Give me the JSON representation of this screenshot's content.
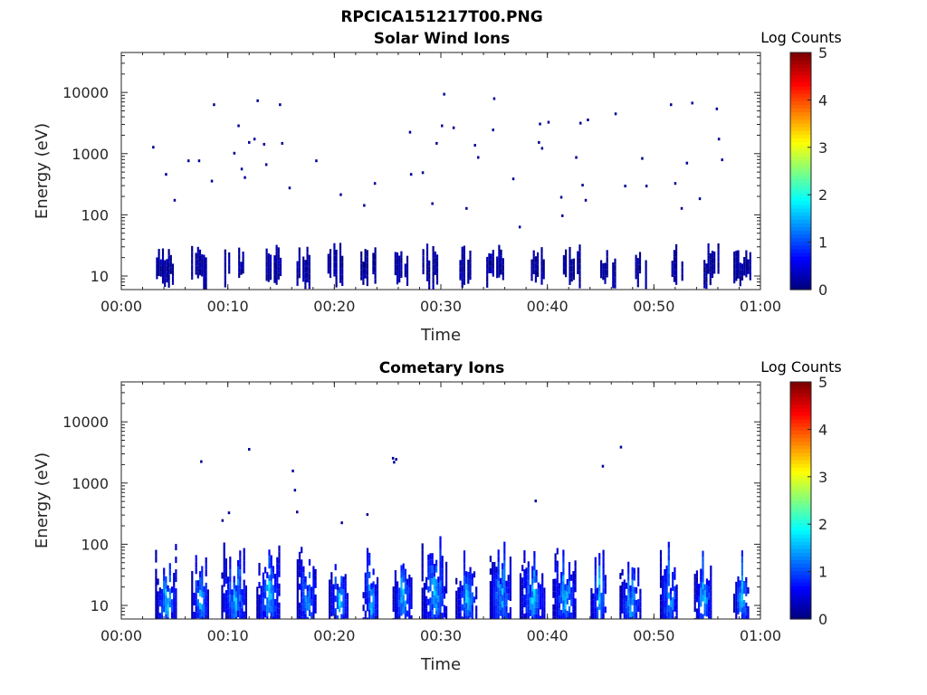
{
  "figure": {
    "title": "RPCICA151217T00.PNG"
  },
  "colors": {
    "background": "#ffffff",
    "axis": "#262626",
    "colormap": "jet"
  },
  "chart_data": [
    {
      "type": "heatmap",
      "title": "Solar Wind Ions",
      "xlabel": "Time",
      "ylabel": "Energy (eV)",
      "x_ticks": [
        "00:00",
        "00:10",
        "00:20",
        "00:30",
        "00:40",
        "00:50",
        "01:00"
      ],
      "x_range_minutes": [
        0,
        60
      ],
      "y_scale": "log",
      "y_ticks": [
        "10",
        "100",
        "1000",
        "10000"
      ],
      "y_range": [
        6,
        45000
      ],
      "colorbar": {
        "label": "Log Counts",
        "range": [
          0,
          5
        ],
        "ticks": [
          "0",
          "1",
          "2",
          "3",
          "4",
          "5"
        ]
      },
      "bursts_minutes": [
        4.1,
        7.3,
        10.6,
        14.3,
        17.1,
        20.1,
        23.1,
        26.2,
        29.1,
        32.2,
        35.1,
        39.1,
        42.3,
        45.8,
        48.7,
        52.2,
        55.4,
        58.3
      ],
      "low_energy_band_eV": [
        6,
        35
      ],
      "burst_max_log_counts": 0.3,
      "scattered_points": [
        {
          "t": 2.9,
          "e": 1250,
          "c": 0.1
        },
        {
          "t": 4.1,
          "e": 450,
          "c": 0.1
        },
        {
          "t": 4.9,
          "e": 170,
          "c": 0.1
        },
        {
          "t": 6.2,
          "e": 750,
          "c": 0.1
        },
        {
          "t": 7.2,
          "e": 750,
          "c": 0.1
        },
        {
          "t": 8.6,
          "e": 6200,
          "c": 0.1
        },
        {
          "t": 8.4,
          "e": 350,
          "c": 0.1
        },
        {
          "t": 10.5,
          "e": 1000,
          "c": 0.1
        },
        {
          "t": 10.9,
          "e": 2800,
          "c": 0.1
        },
        {
          "t": 11.2,
          "e": 550,
          "c": 0.1
        },
        {
          "t": 11.5,
          "e": 400,
          "c": 0.1
        },
        {
          "t": 11.9,
          "e": 1500,
          "c": 0.1
        },
        {
          "t": 12.4,
          "e": 1700,
          "c": 0.1
        },
        {
          "t": 12.7,
          "e": 7200,
          "c": 0.1
        },
        {
          "t": 13.3,
          "e": 1400,
          "c": 0.1
        },
        {
          "t": 13.5,
          "e": 650,
          "c": 0.1
        },
        {
          "t": 14.8,
          "e": 6200,
          "c": 0.1
        },
        {
          "t": 15.0,
          "e": 1450,
          "c": 0.1
        },
        {
          "t": 15.7,
          "e": 270,
          "c": 0.1
        },
        {
          "t": 18.2,
          "e": 750,
          "c": 0.1
        },
        {
          "t": 20.5,
          "e": 210,
          "c": 0.1
        },
        {
          "t": 22.7,
          "e": 140,
          "c": 0.1
        },
        {
          "t": 23.7,
          "e": 320,
          "c": 0.1
        },
        {
          "t": 27.0,
          "e": 2200,
          "c": 0.1
        },
        {
          "t": 27.1,
          "e": 450,
          "c": 0.1
        },
        {
          "t": 28.2,
          "e": 480,
          "c": 0.1
        },
        {
          "t": 29.1,
          "e": 150,
          "c": 0.1
        },
        {
          "t": 29.5,
          "e": 1450,
          "c": 0.1
        },
        {
          "t": 30.2,
          "e": 9200,
          "c": 0.1
        },
        {
          "t": 30.0,
          "e": 2800,
          "c": 0.1
        },
        {
          "t": 31.1,
          "e": 2600,
          "c": 0.1
        },
        {
          "t": 32.3,
          "e": 125,
          "c": 0.1
        },
        {
          "t": 33.1,
          "e": 1350,
          "c": 0.1
        },
        {
          "t": 33.4,
          "e": 850,
          "c": 0.1
        },
        {
          "t": 34.9,
          "e": 7800,
          "c": 0.1
        },
        {
          "t": 34.8,
          "e": 2400,
          "c": 0.1
        },
        {
          "t": 36.7,
          "e": 380,
          "c": 0.1
        },
        {
          "t": 37.3,
          "e": 62,
          "c": 0.1
        },
        {
          "t": 39.1,
          "e": 1500,
          "c": 0.1
        },
        {
          "t": 39.4,
          "e": 1200,
          "c": 0.1
        },
        {
          "t": 39.2,
          "e": 3000,
          "c": 0.1
        },
        {
          "t": 40.0,
          "e": 3200,
          "c": 0.1
        },
        {
          "t": 41.2,
          "e": 190,
          "c": 0.1
        },
        {
          "t": 41.3,
          "e": 95,
          "c": 0.1
        },
        {
          "t": 42.6,
          "e": 850,
          "c": 0.1
        },
        {
          "t": 43.0,
          "e": 3100,
          "c": 0.1
        },
        {
          "t": 43.2,
          "e": 300,
          "c": 0.1
        },
        {
          "t": 43.5,
          "e": 170,
          "c": 0.1
        },
        {
          "t": 43.7,
          "e": 3500,
          "c": 0.1
        },
        {
          "t": 46.3,
          "e": 4400,
          "c": 0.1
        },
        {
          "t": 47.2,
          "e": 290,
          "c": 0.1
        },
        {
          "t": 48.8,
          "e": 820,
          "c": 0.1
        },
        {
          "t": 49.2,
          "e": 290,
          "c": 0.1
        },
        {
          "t": 51.5,
          "e": 6200,
          "c": 0.1
        },
        {
          "t": 51.9,
          "e": 320,
          "c": 0.1
        },
        {
          "t": 52.5,
          "e": 125,
          "c": 0.1
        },
        {
          "t": 53.0,
          "e": 690,
          "c": 0.1
        },
        {
          "t": 53.5,
          "e": 6600,
          "c": 0.1
        },
        {
          "t": 54.2,
          "e": 180,
          "c": 0.1
        },
        {
          "t": 55.8,
          "e": 5300,
          "c": 0.1
        },
        {
          "t": 56.0,
          "e": 1700,
          "c": 0.1
        },
        {
          "t": 56.3,
          "e": 780,
          "c": 0.1
        }
      ]
    },
    {
      "type": "heatmap",
      "title": "Cometary Ions",
      "xlabel": "Time",
      "ylabel": "Energy (eV)",
      "x_ticks": [
        "00:00",
        "00:10",
        "00:20",
        "00:30",
        "00:40",
        "00:50",
        "01:00"
      ],
      "x_range_minutes": [
        0,
        60
      ],
      "y_scale": "log",
      "y_ticks": [
        "10",
        "100",
        "1000",
        "10000"
      ],
      "y_range": [
        6,
        45000
      ],
      "colorbar": {
        "label": "Log Counts",
        "range": [
          0,
          5
        ],
        "ticks": [
          "0",
          "1",
          "2",
          "3",
          "4",
          "5"
        ]
      },
      "bursts_minutes": [
        4.2,
        7.4,
        10.6,
        13.8,
        17.4,
        20.4,
        23.4,
        26.4,
        29.4,
        32.4,
        35.6,
        38.6,
        41.6,
        44.8,
        47.8,
        51.4,
        54.6,
        58.2
      ],
      "low_energy_band_eV": [
        6,
        45
      ],
      "burst_max_log_counts": 1.9,
      "scattered_points": [
        {
          "t": 7.4,
          "e": 2200,
          "c": 0.1
        },
        {
          "t": 11.9,
          "e": 3500,
          "c": 0.1
        },
        {
          "t": 16.0,
          "e": 1550,
          "c": 0.1
        },
        {
          "t": 16.2,
          "e": 750,
          "c": 0.1
        },
        {
          "t": 16.4,
          "e": 330,
          "c": 0.1
        },
        {
          "t": 25.4,
          "e": 2500,
          "c": 0.1
        },
        {
          "t": 25.7,
          "e": 2400,
          "c": 0.1
        },
        {
          "t": 25.5,
          "e": 2150,
          "c": 0.1
        },
        {
          "t": 38.8,
          "e": 500,
          "c": 0.1
        },
        {
          "t": 45.1,
          "e": 1850,
          "c": 0.1
        },
        {
          "t": 46.8,
          "e": 3800,
          "c": 0.1
        },
        {
          "t": 9.4,
          "e": 240,
          "c": 0.1
        },
        {
          "t": 10.0,
          "e": 320,
          "c": 0.1
        },
        {
          "t": 20.6,
          "e": 220,
          "c": 0.1
        },
        {
          "t": 23.0,
          "e": 300,
          "c": 0.1
        }
      ]
    }
  ]
}
